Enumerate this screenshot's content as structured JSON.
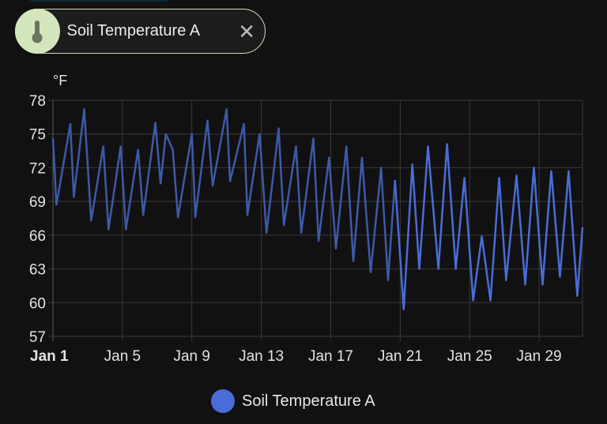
{
  "chip": {
    "label": "Soil Temperature A",
    "icon": "thermometer-icon",
    "close_icon": "close-icon"
  },
  "chart_data": {
    "type": "line",
    "title": "",
    "ylabel": "°F",
    "xlabel": "",
    "ylim": [
      57,
      78
    ],
    "xlim": [
      1,
      31.5
    ],
    "grid": true,
    "y_ticks": [
      "78",
      "75",
      "72",
      "69",
      "66",
      "63",
      "60",
      "57"
    ],
    "y_tick_values": [
      78,
      75,
      72,
      69,
      66,
      63,
      60,
      57
    ],
    "x_ticks": [
      "Jan 1",
      "Jan 5",
      "Jan 9",
      "Jan 13",
      "Jan 17",
      "Jan 21",
      "Jan 25",
      "Jan 29"
    ],
    "x_tick_values": [
      1,
      5,
      9,
      13,
      17,
      21,
      25,
      29
    ],
    "legend": "bottom-center",
    "series": [
      {
        "name": "Soil Temperature A",
        "color": "#4a6cd8",
        "points": [
          [
            1.0,
            74.6
          ],
          [
            1.2,
            68.7
          ],
          [
            2.0,
            75.9
          ],
          [
            2.2,
            69.4
          ],
          [
            2.8,
            77.2
          ],
          [
            3.2,
            67.3
          ],
          [
            3.9,
            73.9
          ],
          [
            4.2,
            66.5
          ],
          [
            4.9,
            73.9
          ],
          [
            5.2,
            66.5
          ],
          [
            5.9,
            73.6
          ],
          [
            6.2,
            67.8
          ],
          [
            6.9,
            76.0
          ],
          [
            7.2,
            70.6
          ],
          [
            7.5,
            75.0
          ],
          [
            7.9,
            73.6
          ],
          [
            8.2,
            67.6
          ],
          [
            9.0,
            75.0
          ],
          [
            9.2,
            67.6
          ],
          [
            9.9,
            76.2
          ],
          [
            10.2,
            70.4
          ],
          [
            11.0,
            77.2
          ],
          [
            11.2,
            70.8
          ],
          [
            12.0,
            75.9
          ],
          [
            12.2,
            67.8
          ],
          [
            12.9,
            75.0
          ],
          [
            13.3,
            66.2
          ],
          [
            14.0,
            75.5
          ],
          [
            14.3,
            66.9
          ],
          [
            15.0,
            73.9
          ],
          [
            15.3,
            66.2
          ],
          [
            16.0,
            74.6
          ],
          [
            16.3,
            65.5
          ],
          [
            16.9,
            72.9
          ],
          [
            17.3,
            64.8
          ],
          [
            17.9,
            73.9
          ],
          [
            18.3,
            63.7
          ],
          [
            18.8,
            72.9
          ],
          [
            19.3,
            62.7
          ],
          [
            19.9,
            72.0
          ],
          [
            20.3,
            62.0
          ],
          [
            20.7,
            70.9
          ],
          [
            21.2,
            59.4
          ],
          [
            21.7,
            72.3
          ],
          [
            22.1,
            63.0
          ],
          [
            22.6,
            73.9
          ],
          [
            23.2,
            63.0
          ],
          [
            23.7,
            74.1
          ],
          [
            24.2,
            63.0
          ],
          [
            24.7,
            71.1
          ],
          [
            25.2,
            60.2
          ],
          [
            25.7,
            65.9
          ],
          [
            26.2,
            60.2
          ],
          [
            26.7,
            71.1
          ],
          [
            27.1,
            62.0
          ],
          [
            27.7,
            71.3
          ],
          [
            28.2,
            61.6
          ],
          [
            28.7,
            72.0
          ],
          [
            29.2,
            61.6
          ],
          [
            29.7,
            71.7
          ],
          [
            30.2,
            62.3
          ],
          [
            30.7,
            71.7
          ],
          [
            31.2,
            60.6
          ],
          [
            31.5,
            66.7
          ]
        ]
      }
    ]
  }
}
